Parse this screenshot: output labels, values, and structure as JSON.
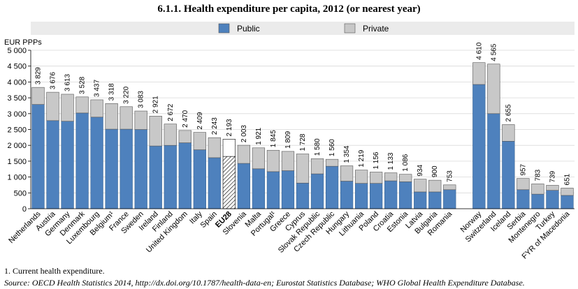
{
  "title": "6.1.1. Health expenditure per capita, 2012 (or nearest year)",
  "footnote": "1. Current health expenditure.",
  "source_prefix": "Source:",
  "source_text": "OECD Health Statistics 2014, http://dx.doi.org/10.1787/health-data-en; Eurostat Statistics Database; WHO Global Health Expenditure Database.",
  "colors": {
    "public": "#4e81bd",
    "private": "#c8c8c8",
    "legend_bg": "#ebebeb",
    "plot_bg": "#ffffff",
    "eu28_public": "hatched",
    "eu28_private": "#ffffff"
  },
  "chart_data": {
    "type": "bar",
    "stacked": true,
    "ylabel": "EUR PPPs",
    "ylim": [
      0,
      5000
    ],
    "yticks": [
      0,
      500,
      1000,
      1500,
      2000,
      2500,
      3000,
      3500,
      4000,
      4500,
      5000
    ],
    "ytick_labels": [
      "0",
      "500",
      "1 000",
      "1 500",
      "2 000",
      "2 500",
      "3 000",
      "3 500",
      "4 000",
      "4 500",
      "5 000"
    ],
    "legend": {
      "position": "top",
      "entries": [
        "Public",
        "Private"
      ]
    },
    "categories": [
      "Netherlands",
      "Austria",
      "Germany",
      "Denmark",
      "Luxembourg",
      "Belgium",
      "France",
      "Sweden",
      "Ireland",
      "Finland",
      "United Kingdom",
      "Italy",
      "Spain",
      "EU28",
      "Slovenia",
      "Malta",
      "Portugal",
      "Greece",
      "Cyprus",
      "Slovak Republic",
      "Czech Republic",
      "Hungary",
      "Lithuania",
      "Poland",
      "Croatia",
      "Estonia",
      "Latvia",
      "Bulgaria",
      "Romania",
      "",
      "Norway",
      "Switzerland",
      "Iceland",
      "Serbia",
      "Montenegro",
      "Turkey",
      "FYR of Macedonia"
    ],
    "category_labels": [
      "Netherlands",
      "Austria",
      "Germany",
      "Denmark",
      "Luxembourg",
      "Belgium¹",
      "France",
      "Sweden",
      "Ireland",
      "Finland",
      "United Kingdom",
      "Italy",
      "Spain",
      "EU28",
      "Slovenia",
      "Malta",
      "Portugal¹",
      "Greece",
      "Cyprus",
      "Slovak Republic",
      "Czech Republic",
      "Hungary",
      "Lithuania",
      "Poland",
      "Croatia",
      "Estonia",
      "Latvia",
      "Bulgaria",
      "Romania",
      "",
      "Norway",
      "Switzerland",
      "Iceland",
      "Serbia",
      "Montenegro",
      "Turkey",
      "FYR of Macedonia"
    ],
    "highlight": "EU28",
    "series": [
      {
        "name": "Public",
        "values": [
          3290,
          2780,
          2760,
          3020,
          2890,
          2510,
          2510,
          2500,
          1980,
          2000,
          2080,
          1860,
          1610,
          1650,
          1430,
          1260,
          1170,
          1200,
          810,
          1100,
          1340,
          870,
          800,
          800,
          880,
          850,
          530,
          530,
          600,
          null,
          3920,
          3000,
          2130,
          600,
          460,
          580,
          420
        ]
      },
      {
        "name": "Private",
        "values": [
          539,
          896,
          853,
          508,
          547,
          808,
          710,
          583,
          941,
          672,
          390,
          549,
          633,
          543,
          573,
          661,
          675,
          609,
          918,
          480,
          220,
          484,
          419,
          356,
          253,
          236,
          404,
          370,
          153,
          null,
          690,
          1565,
          525,
          357,
          323,
          159,
          231
        ]
      }
    ],
    "totals": [
      3829,
      3676,
      3613,
      3528,
      3437,
      3318,
      3220,
      3083,
      2921,
      2672,
      2470,
      2409,
      2243,
      2193,
      2003,
      1921,
      1845,
      1809,
      1728,
      1580,
      1560,
      1354,
      1219,
      1156,
      1133,
      1086,
      934,
      900,
      753,
      null,
      4610,
      4565,
      2655,
      957,
      783,
      739,
      651
    ],
    "total_labels": [
      "3 829",
      "3 676",
      "3 613",
      "3 528",
      "3 437",
      "3 318",
      "3 220",
      "3 083",
      "2 921",
      "2 672",
      "2 470",
      "2 409",
      "2 243",
      "2 193",
      "2 003",
      "1 921",
      "1 845",
      "1 809",
      "1 728",
      "1 580",
      "1 560",
      "1 354",
      "1 219",
      "1 156",
      "1 133",
      "1 086",
      "934",
      "900",
      "753",
      "",
      "4 610",
      "4 565",
      "2 655",
      "957",
      "783",
      "739",
      "651"
    ]
  }
}
